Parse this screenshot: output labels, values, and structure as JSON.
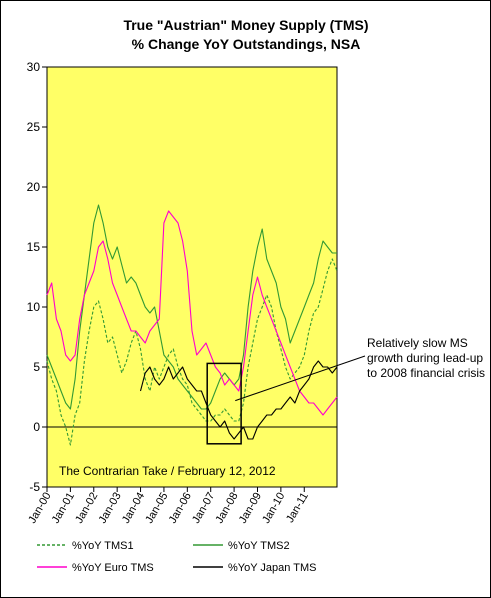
{
  "chart_data": {
    "type": "line",
    "title": "True \"Austrian\" Money Supply (TMS)",
    "subtitle": "% Change YoY Outstandings, NSA",
    "xlabel": "",
    "ylabel": "",
    "ylim": [
      -5,
      30
    ],
    "xlim": [
      0,
      12.4
    ],
    "yticks": [
      "-5",
      "0",
      "5",
      "10",
      "15",
      "20",
      "25",
      "30"
    ],
    "xtick_labels": [
      "Jan-00",
      "Jan-01",
      "Jan-02",
      "Jan-03",
      "Jan-04",
      "Jan-05",
      "Jan-06",
      "Jan-07",
      "Jan-08",
      "Jan-09",
      "Jan-10",
      "Jan-11"
    ],
    "grid": false,
    "plot_background": "#ffff66",
    "legend_position": "bottom",
    "source_note": "The Contrarian Take / February 12, 2012",
    "annotation": {
      "lines": [
        "Relatively slow MS",
        "growth during lead-up",
        "to 2008 financial crisis"
      ],
      "box_x": [
        6.85,
        8.3
      ],
      "box_y": [
        -1.4,
        5.3
      ],
      "pointer_target": [
        8.05,
        2.2
      ]
    },
    "series": [
      {
        "name": "%YoY TMS1",
        "color": "#339933",
        "dash": "3,2",
        "x": [
          0,
          0.2,
          0.4,
          0.6,
          0.8,
          1,
          1.2,
          1.4,
          1.6,
          1.8,
          2,
          2.2,
          2.4,
          2.6,
          2.8,
          3,
          3.2,
          3.4,
          3.6,
          3.8,
          4,
          4.2,
          4.4,
          4.6,
          4.8,
          5,
          5.2,
          5.4,
          5.6,
          5.8,
          6,
          6.2,
          6.4,
          6.6,
          6.8,
          7,
          7.2,
          7.4,
          7.6,
          7.8,
          8,
          8.2,
          8.4,
          8.6,
          8.8,
          9,
          9.2,
          9.4,
          9.6,
          9.8,
          10,
          10.2,
          10.4,
          10.6,
          10.8,
          11,
          11.2,
          11.4,
          11.6,
          11.8,
          12,
          12.2,
          12.4
        ],
        "y": [
          5.5,
          4,
          3,
          1,
          0,
          -1.5,
          1,
          2,
          5.5,
          8,
          10,
          10.5,
          9,
          7,
          7.5,
          6,
          4.5,
          5.5,
          7,
          8,
          6.5,
          4,
          3,
          5,
          4,
          5,
          6,
          6.5,
          5,
          4,
          3.5,
          2,
          1.5,
          1,
          0.5,
          0.5,
          1,
          1,
          1.5,
          1,
          0.5,
          0.5,
          2,
          5,
          7,
          9,
          10,
          11,
          10,
          8,
          6.5,
          5,
          4,
          4.5,
          5,
          6,
          8,
          9.5,
          10,
          11.5,
          13,
          14,
          13
        ]
      },
      {
        "name": "%YoY TMS2",
        "color": "#339933",
        "dash": "",
        "x": [
          0,
          0.2,
          0.4,
          0.6,
          0.8,
          1,
          1.2,
          1.4,
          1.6,
          1.8,
          2,
          2.2,
          2.4,
          2.6,
          2.8,
          3,
          3.2,
          3.4,
          3.6,
          3.8,
          4,
          4.2,
          4.4,
          4.6,
          4.8,
          5,
          5.2,
          5.4,
          5.6,
          5.8,
          6,
          6.2,
          6.4,
          6.6,
          6.8,
          7,
          7.2,
          7.4,
          7.6,
          7.8,
          8,
          8.2,
          8.4,
          8.6,
          8.8,
          9,
          9.2,
          9.4,
          9.6,
          9.8,
          10,
          10.2,
          10.4,
          10.6,
          10.8,
          11,
          11.2,
          11.4,
          11.6,
          11.8,
          12,
          12.2,
          12.4
        ],
        "y": [
          6,
          5,
          4,
          3,
          2,
          1.5,
          4,
          8,
          11,
          14,
          17,
          18.5,
          17,
          15,
          14,
          15,
          13.5,
          12,
          12.5,
          12,
          11,
          10,
          9.5,
          10,
          8,
          6,
          5.5,
          5,
          4,
          3.5,
          3,
          2.5,
          2,
          1.5,
          1.5,
          2,
          3,
          4,
          4.5,
          4,
          3.5,
          4,
          6,
          10,
          13,
          15,
          16.5,
          14,
          13,
          12,
          10,
          9,
          7,
          8,
          9,
          10,
          11,
          12,
          14,
          15.5,
          15,
          14.5,
          14.5
        ]
      },
      {
        "name": "%YoY Euro TMS",
        "color": "#ff00cc",
        "dash": "",
        "x": [
          0,
          0.2,
          0.4,
          0.6,
          0.8,
          1,
          1.2,
          1.4,
          1.6,
          1.8,
          2,
          2.2,
          2.4,
          2.6,
          2.8,
          3,
          3.2,
          3.4,
          3.6,
          3.8,
          4,
          4.2,
          4.4,
          4.6,
          4.8,
          5,
          5.2,
          5.4,
          5.6,
          5.8,
          6,
          6.2,
          6.4,
          6.6,
          6.8,
          7,
          7.2,
          7.4,
          7.6,
          7.8,
          8,
          8.2,
          8.4,
          8.6,
          8.8,
          9,
          9.2,
          9.4,
          9.6,
          9.8,
          10,
          10.2,
          10.4,
          10.6,
          10.8,
          11,
          11.2,
          11.4,
          11.6,
          11.8,
          12,
          12.2,
          12.4
        ],
        "y": [
          11,
          12,
          9,
          8,
          6,
          5.5,
          6,
          9,
          11,
          12,
          13,
          15,
          15.5,
          14,
          12,
          11,
          10,
          9,
          8,
          8,
          7.5,
          7,
          8,
          8.5,
          9,
          17,
          18,
          17.5,
          17,
          15.5,
          13,
          8,
          6,
          6.5,
          7,
          6,
          5,
          4.5,
          3.5,
          4,
          3.5,
          3,
          5,
          8,
          11,
          12.5,
          11,
          10,
          9,
          8,
          7,
          6,
          5,
          4,
          3,
          2.5,
          2,
          2,
          1.5,
          1,
          1.5,
          2,
          2.5
        ]
      },
      {
        "name": "%YoY Japan TMS",
        "color": "#000000",
        "dash": "",
        "x": [
          4,
          4.2,
          4.4,
          4.6,
          4.8,
          5,
          5.2,
          5.4,
          5.6,
          5.8,
          6,
          6.2,
          6.4,
          6.6,
          6.8,
          7,
          7.2,
          7.4,
          7.6,
          7.8,
          8,
          8.2,
          8.4,
          8.6,
          8.8,
          9,
          9.2,
          9.4,
          9.6,
          9.8,
          10,
          10.2,
          10.4,
          10.6,
          10.8,
          11,
          11.2,
          11.4,
          11.6,
          11.8,
          12,
          12.2,
          12.4
        ],
        "y": [
          3,
          4.5,
          5,
          4,
          3.5,
          4,
          5,
          4,
          4.5,
          5,
          4,
          3.5,
          3,
          3,
          2,
          1,
          0.5,
          0,
          0.5,
          -0.5,
          -1,
          -0.5,
          0,
          -1,
          -1,
          0,
          0.5,
          1,
          1,
          1.5,
          1.5,
          2,
          2.5,
          2,
          3,
          3.5,
          4,
          5,
          5.5,
          5,
          5,
          4.5,
          5
        ]
      }
    ]
  }
}
